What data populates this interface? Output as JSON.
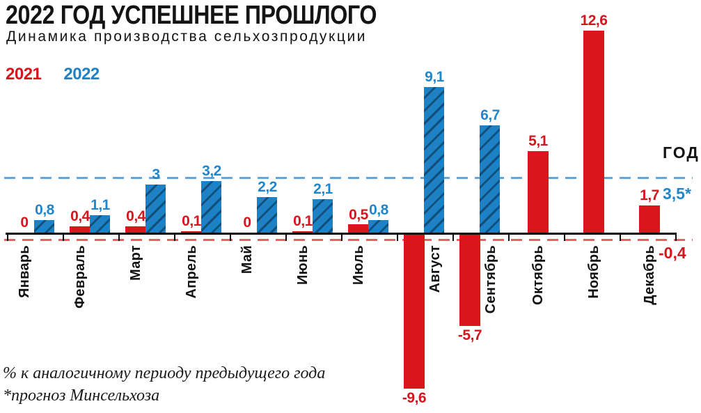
{
  "header": {
    "title": "2022 ГОД УСПЕШНЕЕ ПРОШЛОГО",
    "subtitle": "Динамика производства сельхозпродукции"
  },
  "legend": [
    {
      "label": "2021",
      "color": "#d6161c"
    },
    {
      "label": "2022",
      "color": "#1e81c6"
    }
  ],
  "annotations": {
    "year_label": "ГОД",
    "year_total_2022": "3,5*",
    "year_total_2021": "-0,4"
  },
  "footnotes": [
    "% к аналогичному периоду предыдущего года",
    "*прогноз Минсельхоза"
  ],
  "chart_data": {
    "type": "bar",
    "title": "Динамика производства сельхозпродукции",
    "unit": "% к аналогичному периоду предыдущего года",
    "categories": [
      "Январь",
      "Февраль",
      "Март",
      "Апрель",
      "Май",
      "Июнь",
      "Июль",
      "Август",
      "Сентябрь",
      "Октябрь",
      "Ноябрь",
      "Декабрь"
    ],
    "series": [
      {
        "name": "2021",
        "color": "#da161c",
        "values": [
          0,
          0.4,
          0.4,
          0.1,
          0,
          0.1,
          0.5,
          -9.6,
          -5.7,
          5.1,
          12.6,
          1.7
        ],
        "labels": [
          "0",
          "0,4",
          "0,4",
          "0,1",
          "0",
          "0,1",
          "0,5",
          "-9,6",
          "-5,7",
          "5,1",
          "12,6",
          "1,7"
        ]
      },
      {
        "name": "2022",
        "color": "#1e81c4",
        "values": [
          0.8,
          1.1,
          3,
          3.2,
          2.2,
          2.1,
          0.8,
          9.1,
          6.7,
          null,
          null,
          null
        ],
        "labels": [
          "0,8",
          "1,1",
          "3",
          "3,2",
          "2,2",
          "2,1",
          "0,8",
          "9,1",
          "6,7",
          null,
          null,
          null
        ]
      }
    ],
    "reference_lines": [
      {
        "series": "2022",
        "value": 3.5,
        "label": "3,5*",
        "style": "dashed",
        "color": "#66a5d8"
      },
      {
        "series": "2021",
        "value": -0.4,
        "label": "-0,4",
        "style": "dashed",
        "color": "#ee5e62"
      }
    ],
    "ylim": [
      -10.5,
      13.5
    ],
    "grid": false,
    "legend_position": "top-left"
  }
}
